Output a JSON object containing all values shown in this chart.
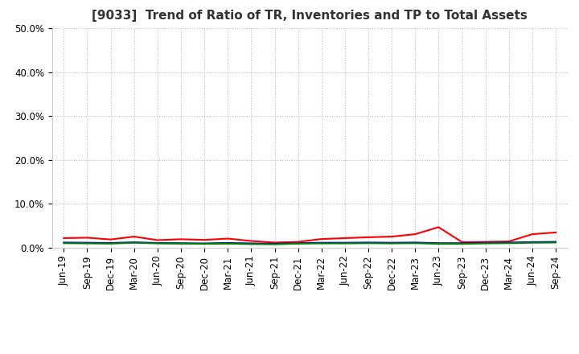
{
  "title": "[9033]  Trend of Ratio of TR, Inventories and TP to Total Assets",
  "x_labels": [
    "Jun-19",
    "Sep-19",
    "Dec-19",
    "Mar-20",
    "Jun-20",
    "Sep-20",
    "Dec-20",
    "Mar-21",
    "Jun-21",
    "Sep-21",
    "Dec-21",
    "Mar-22",
    "Jun-22",
    "Sep-22",
    "Dec-22",
    "Mar-23",
    "Jun-23",
    "Sep-23",
    "Dec-23",
    "Mar-24",
    "Jun-24",
    "Sep-24"
  ],
  "trade_receivables": [
    0.022,
    0.023,
    0.019,
    0.0255,
    0.0175,
    0.0195,
    0.018,
    0.021,
    0.0155,
    0.012,
    0.0135,
    0.02,
    0.022,
    0.024,
    0.0255,
    0.031,
    0.047,
    0.013,
    0.0135,
    0.0145,
    0.031,
    0.035
  ],
  "inventories": [
    0.012,
    0.0115,
    0.011,
    0.0125,
    0.011,
    0.0105,
    0.01,
    0.011,
    0.01,
    0.0095,
    0.0105,
    0.0115,
    0.0115,
    0.012,
    0.0115,
    0.012,
    0.0105,
    0.0105,
    0.0115,
    0.012,
    0.013,
    0.0135
  ],
  "trade_payables": [
    0.0105,
    0.01,
    0.0095,
    0.0115,
    0.01,
    0.0095,
    0.009,
    0.0095,
    0.0085,
    0.008,
    0.0095,
    0.01,
    0.01,
    0.0105,
    0.01,
    0.0105,
    0.009,
    0.009,
    0.01,
    0.0105,
    0.0115,
    0.012
  ],
  "tr_color": "#ff0000",
  "inv_color": "#0000cd",
  "tp_color": "#008000",
  "background_color": "#ffffff",
  "grid_color": "#bbbbbb",
  "ylim": [
    0.0,
    0.5
  ],
  "yticks": [
    0.0,
    0.1,
    0.2,
    0.3,
    0.4,
    0.5
  ],
  "title_fontsize": 11,
  "legend_fontsize": 9,
  "tick_fontsize": 8.5
}
